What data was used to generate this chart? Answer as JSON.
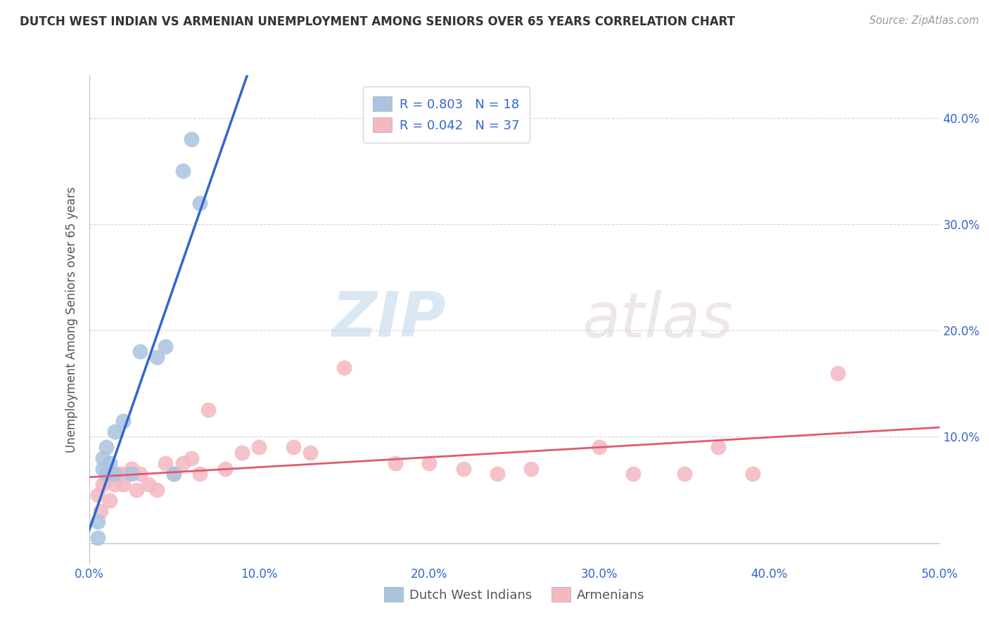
{
  "title": "DUTCH WEST INDIAN VS ARMENIAN UNEMPLOYMENT AMONG SENIORS OVER 65 YEARS CORRELATION CHART",
  "source": "Source: ZipAtlas.com",
  "ylabel": "Unemployment Among Seniors over 65 years",
  "xlim": [
    0.0,
    0.5
  ],
  "ylim": [
    -0.02,
    0.44
  ],
  "xticks": [
    0.0,
    0.1,
    0.2,
    0.3,
    0.4,
    0.5
  ],
  "yticks": [
    0.0,
    0.1,
    0.2,
    0.3,
    0.4
  ],
  "xtick_labels": [
    "0.0%",
    "10.0%",
    "20.0%",
    "30.0%",
    "40.0%",
    "50.0%"
  ],
  "ytick_labels_left": [
    "",
    "",
    "",
    "",
    ""
  ],
  "ytick_labels_right": [
    "",
    "10.0%",
    "20.0%",
    "30.0%",
    "40.0%"
  ],
  "background_color": "#ffffff",
  "grid_color": "#cccccc",
  "dwi_color": "#aac4e0",
  "arm_color": "#f4b8c1",
  "dwi_line_color": "#3366cc",
  "arm_line_color": "#e05a6e",
  "legend_r_dwi": "R = 0.803",
  "legend_n_dwi": "N = 18",
  "legend_r_arm": "R = 0.042",
  "legend_n_arm": "N = 37",
  "watermark_zip": "ZIP",
  "watermark_atlas": "atlas",
  "dwi_x": [
    0.005,
    0.005,
    0.008,
    0.008,
    0.01,
    0.01,
    0.012,
    0.015,
    0.015,
    0.02,
    0.025,
    0.03,
    0.04,
    0.045,
    0.05,
    0.055,
    0.06,
    0.065
  ],
  "dwi_y": [
    0.005,
    0.02,
    0.07,
    0.08,
    0.065,
    0.09,
    0.075,
    0.065,
    0.105,
    0.115,
    0.065,
    0.18,
    0.175,
    0.185,
    0.065,
    0.35,
    0.38,
    0.32
  ],
  "arm_x": [
    0.005,
    0.007,
    0.008,
    0.01,
    0.012,
    0.015,
    0.018,
    0.02,
    0.022,
    0.025,
    0.028,
    0.03,
    0.035,
    0.04,
    0.045,
    0.05,
    0.055,
    0.06,
    0.065,
    0.07,
    0.08,
    0.09,
    0.1,
    0.12,
    0.13,
    0.15,
    0.18,
    0.2,
    0.22,
    0.24,
    0.26,
    0.3,
    0.32,
    0.35,
    0.37,
    0.39,
    0.44
  ],
  "arm_y": [
    0.045,
    0.03,
    0.055,
    0.06,
    0.04,
    0.055,
    0.065,
    0.055,
    0.065,
    0.07,
    0.05,
    0.065,
    0.055,
    0.05,
    0.075,
    0.065,
    0.075,
    0.08,
    0.065,
    0.125,
    0.07,
    0.085,
    0.09,
    0.09,
    0.085,
    0.165,
    0.075,
    0.075,
    0.07,
    0.065,
    0.07,
    0.09,
    0.065,
    0.065,
    0.09,
    0.065,
    0.16
  ]
}
